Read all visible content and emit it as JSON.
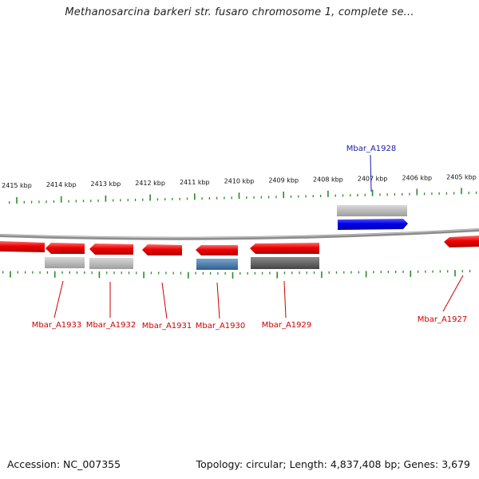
{
  "title": "Methanosarcina barkeri str. fusaro chromosome 1, complete se...",
  "footer": {
    "accession": "Accession: NC_007355",
    "summary": "Topology: circular; Length: 4,837,408 bp; Genes: 3,679"
  },
  "colors": {
    "forward_gene": "#0000ee",
    "reverse_gene": "#ee0000",
    "label_forward": "#1a1aa6",
    "label_reverse": "#cc0000",
    "tick": "#2a8a2a",
    "backbone": "#8c8c8c",
    "cds_grey_light": "#b0b0b0",
    "cds_grey_dark": "#5a5a5a",
    "cds_steel": "#4a7aa8"
  },
  "scale_labels": [
    {
      "text": "2415 kbp",
      "kbp": 2415
    },
    {
      "text": "2414 kbp",
      "kbp": 2414
    },
    {
      "text": "2413 kbp",
      "kbp": 2413
    },
    {
      "text": "2412 kbp",
      "kbp": 2412
    },
    {
      "text": "2411 kbp",
      "kbp": 2411
    },
    {
      "text": "2410 kbp",
      "kbp": 2410
    },
    {
      "text": "2409 kbp",
      "kbp": 2409
    },
    {
      "text": "2408 kbp",
      "kbp": 2408
    },
    {
      "text": "2407 kbp",
      "kbp": 2407
    },
    {
      "text": "2406 kbp",
      "kbp": 2406
    },
    {
      "text": "2405 kbp",
      "kbp": 2405
    }
  ],
  "genes": [
    {
      "label": "Mbar_A1933",
      "strand": "reverse"
    },
    {
      "label": "Mbar_A1932",
      "strand": "reverse"
    },
    {
      "label": "Mbar_A1931",
      "strand": "reverse"
    },
    {
      "label": "Mbar_A1930",
      "strand": "reverse"
    },
    {
      "label": "Mbar_A1929",
      "strand": "reverse"
    },
    {
      "label": "Mbar_A1928",
      "strand": "forward"
    },
    {
      "label": "Mbar_A1927",
      "strand": "reverse"
    }
  ]
}
